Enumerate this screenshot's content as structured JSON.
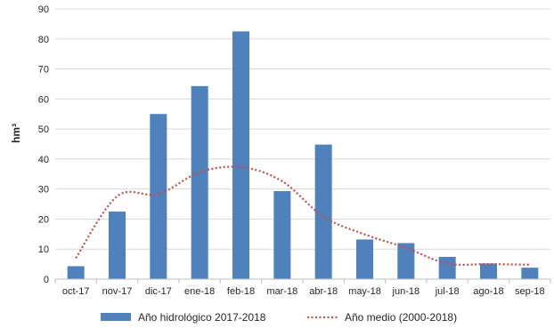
{
  "chart_data": {
    "type": "bar",
    "categories": [
      "oct-17",
      "nov-17",
      "dic-17",
      "ene-18",
      "feb-18",
      "mar-18",
      "abr-18",
      "may-18",
      "jun-18",
      "jul-18",
      "ago-18",
      "sep-18"
    ],
    "series": [
      {
        "name": "Año hidrológico 2017-2018",
        "type": "bar",
        "color": "#4F81BD",
        "values": [
          4.3,
          22.5,
          55.0,
          64.3,
          82.5,
          29.3,
          44.8,
          13.2,
          12.0,
          7.4,
          5.2,
          3.8
        ]
      },
      {
        "name": "Año medio (2000-2018)",
        "type": "line",
        "style": "dotted",
        "color": "#C0504D",
        "values": [
          7.0,
          27.6,
          28.3,
          35.6,
          37.3,
          32.6,
          20.8,
          14.9,
          10.4,
          5.2,
          5.0,
          4.8
        ]
      }
    ],
    "ylabel": "hm³",
    "ylim": [
      0,
      90
    ],
    "yticks": [
      0,
      10,
      20,
      30,
      40,
      50,
      60,
      70,
      80,
      90
    ],
    "grid": true,
    "legend": "bottom"
  }
}
